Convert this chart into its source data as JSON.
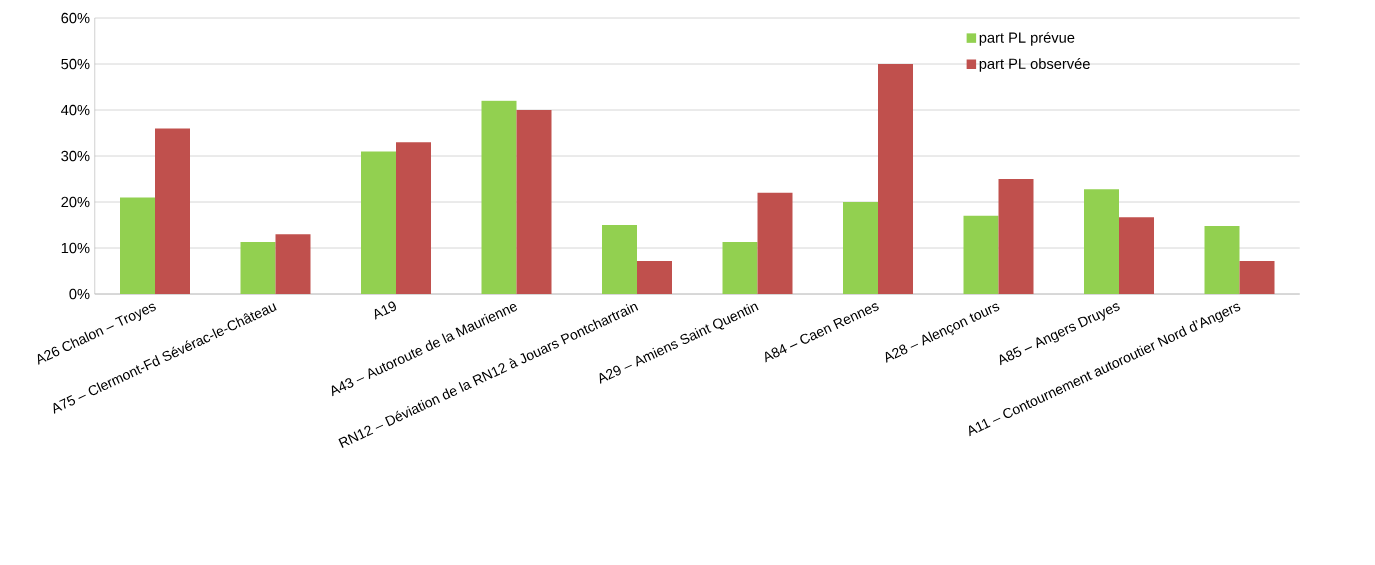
{
  "chart_data": {
    "type": "bar",
    "categories": [
      "A26 Chalon – Troyes",
      "A75 – Clermont-Fd   Sévérac-le-Château",
      "A19",
      "A43 – Autoroute de la Maurienne",
      "RN12 – Déviation de la RN12 à Jouars Pontchartrain",
      "A29 – Amiens Saint Quentin",
      "A84 – Caen Rennes",
      "A28 –  Alençon tours",
      "A85 – Angers Druyes",
      "A11 – Contournement autoroutier    Nord d’Angers"
    ],
    "series": [
      {
        "name": "part PL prévue",
        "color": "#92d050",
        "values": [
          21,
          11.3,
          31,
          42,
          15,
          11.3,
          20,
          17,
          22.8,
          14.8
        ]
      },
      {
        "name": "part PL observée",
        "color": "#c0504d",
        "values": [
          36,
          13,
          33,
          40,
          7.2,
          22,
          50,
          25,
          16.7,
          7.2
        ]
      }
    ],
    "ylim": [
      0,
      60
    ],
    "yticks": [
      {
        "value": 0,
        "label": "0%"
      },
      {
        "value": 10,
        "label": "10%"
      },
      {
        "value": 20,
        "label": "20%"
      },
      {
        "value": 30,
        "label": "30%"
      },
      {
        "value": 40,
        "label": "40%"
      },
      {
        "value": 50,
        "label": "50%"
      },
      {
        "value": 60,
        "label": "60%"
      }
    ],
    "grid": "y",
    "legend": "top right"
  }
}
